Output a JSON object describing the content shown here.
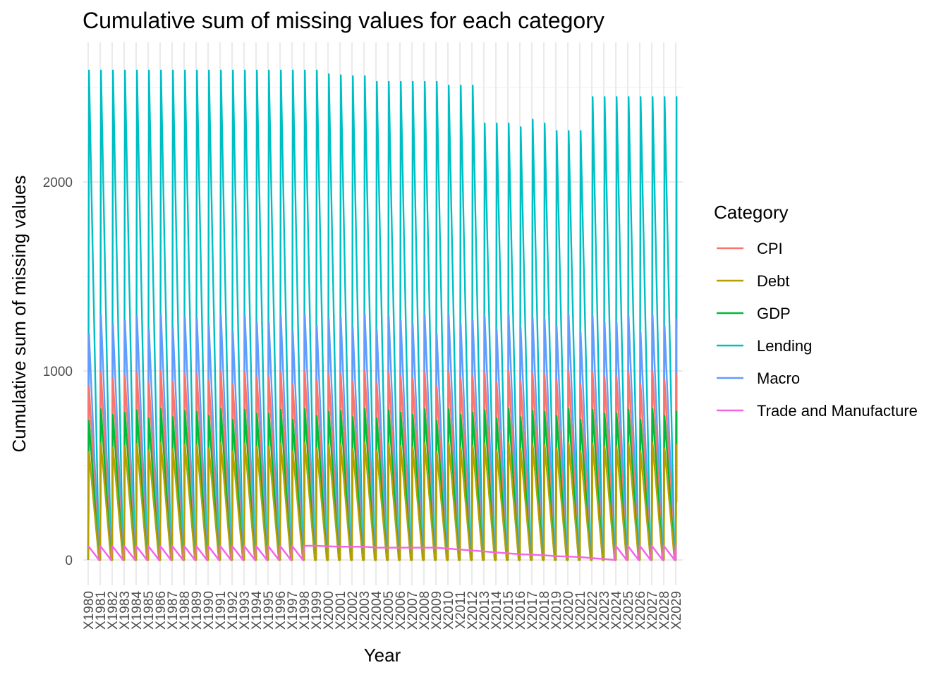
{
  "chart_data": {
    "type": "line",
    "title": "Cumulative sum of missing values for each category",
    "xlabel": "Year",
    "ylabel": "Cumulative sum of missing values",
    "ylim": [
      -100,
      2750
    ],
    "y_ticks": [
      0,
      1000,
      2000
    ],
    "grid": true,
    "legend": {
      "title": "Category",
      "position": "right"
    },
    "categories": [
      "X1980",
      "X1981",
      "X1982",
      "X1983",
      "X1984",
      "X1985",
      "X1986",
      "X1987",
      "X1988",
      "X1989",
      "X1990",
      "X1991",
      "X1992",
      "X1993",
      "X1994",
      "X1995",
      "X1996",
      "X1997",
      "X1998",
      "X1999",
      "X2000",
      "X2001",
      "X2002",
      "X2003",
      "X2004",
      "X2005",
      "X2006",
      "X2007",
      "X2008",
      "X2009",
      "X2010",
      "X2011",
      "X2012",
      "X2013",
      "X2014",
      "X2015",
      "X2016",
      "X2017",
      "X2018",
      "X2019",
      "X2020",
      "X2021",
      "X2022",
      "X2023",
      "X2024",
      "X2025",
      "X2026",
      "X2027",
      "X2028",
      "X2029"
    ],
    "series": [
      {
        "name": "CPI",
        "color": "#F8766D",
        "peak": 1000,
        "peaks": []
      },
      {
        "name": "Debt",
        "color": "#B79F00",
        "peak": 620,
        "peaks": []
      },
      {
        "name": "GDP",
        "color": "#00BA38",
        "peak": 800,
        "peaks": []
      },
      {
        "name": "Lending",
        "color": "#00BFC4",
        "peak": 2590,
        "peaks": [
          2590,
          2590,
          2590,
          2590,
          2590,
          2590,
          2590,
          2590,
          2590,
          2590,
          2590,
          2590,
          2590,
          2590,
          2590,
          2590,
          2590,
          2590,
          2590,
          2590,
          2570,
          2565,
          2560,
          2560,
          2530,
          2530,
          2530,
          2530,
          2530,
          2530,
          2510,
          2510,
          2510,
          2310,
          2310,
          2310,
          2290,
          2330,
          2310,
          2270,
          2270,
          2270,
          2450,
          2450,
          2450,
          2450,
          2450,
          2450,
          2450,
          2450
        ]
      },
      {
        "name": "Macro",
        "color": "#619CFF",
        "peak": 1300,
        "peaks": []
      },
      {
        "name": "Trade and Manufacture",
        "color": "#F564E3",
        "peak": 75,
        "peaks": []
      }
    ],
    "trade_trend": [
      75,
      75,
      75,
      75,
      75,
      75,
      75,
      75,
      75,
      75,
      75,
      75,
      75,
      75,
      75,
      75,
      75,
      75,
      75,
      75,
      72,
      70,
      70,
      70,
      65,
      65,
      65,
      65,
      65,
      65,
      60,
      55,
      50,
      45,
      40,
      35,
      30,
      28,
      25,
      20,
      18,
      15,
      10,
      5,
      75,
      75,
      75,
      75,
      75,
      75
    ]
  }
}
